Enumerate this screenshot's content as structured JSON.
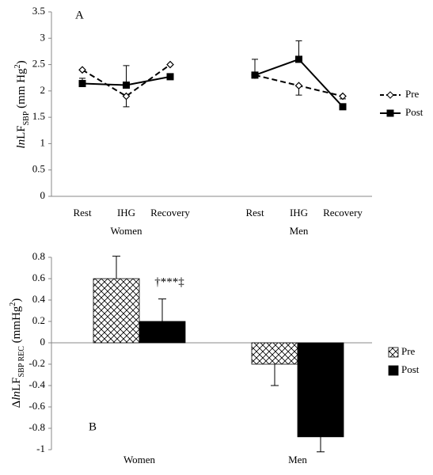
{
  "chart_data": [
    {
      "type": "line",
      "label": "A",
      "ylabel_parts": [
        "ln",
        "LF",
        "SBP",
        " (mm Hg",
        "2",
        ")"
      ],
      "ylim": [
        0,
        3.5
      ],
      "yticks": [
        0,
        0.5,
        1,
        1.5,
        2,
        2.5,
        3,
        3.5
      ],
      "groups": [
        {
          "name": "Women",
          "categories": [
            "Rest",
            "IHG",
            "Recovery"
          ]
        },
        {
          "name": "Men",
          "categories": [
            "Rest",
            "IHG",
            "Recovery"
          ]
        }
      ],
      "series": [
        {
          "name": "Pre",
          "color": "#000000",
          "dashed": true,
          "marker": "open-diamond",
          "values": [
            [
              2.4,
              1.9,
              2.5
            ],
            [
              2.3,
              2.1,
              1.9
            ]
          ],
          "errors": [
            [
              null,
              0.2,
              null
            ],
            [
              null,
              0.18,
              0.05
            ]
          ]
        },
        {
          "name": "Post",
          "color": "#000000",
          "dashed": false,
          "marker": "filled-square",
          "values": [
            [
              2.14,
              2.11,
              2.27
            ],
            [
              2.3,
              2.6,
              1.7
            ]
          ],
          "errors": [
            [
              0.1,
              0.37,
              null
            ],
            [
              0.3,
              0.35,
              null
            ]
          ]
        }
      ]
    },
    {
      "type": "bar",
      "label": "B",
      "ylabel_parts": [
        "Δ",
        "ln",
        "LF",
        "SBP REC",
        " (mmHg",
        "2",
        ")"
      ],
      "categories": [
        "Women",
        "Men"
      ],
      "ylim": [
        -1,
        0.8
      ],
      "yticks": [
        -1,
        -0.8,
        -0.6,
        -0.4,
        -0.2,
        0,
        0.2,
        0.4,
        0.6,
        0.8
      ],
      "annotation": "†***‡",
      "series": [
        {
          "name": "Pre",
          "color": "#000000",
          "hatch": true,
          "values": [
            0.6,
            -0.2
          ],
          "errors": [
            0.21,
            0.2
          ]
        },
        {
          "name": "Post",
          "color": "#000000",
          "hatch": false,
          "values": [
            0.2,
            -0.88
          ],
          "errors": [
            0.21,
            0.14
          ]
        }
      ]
    }
  ]
}
